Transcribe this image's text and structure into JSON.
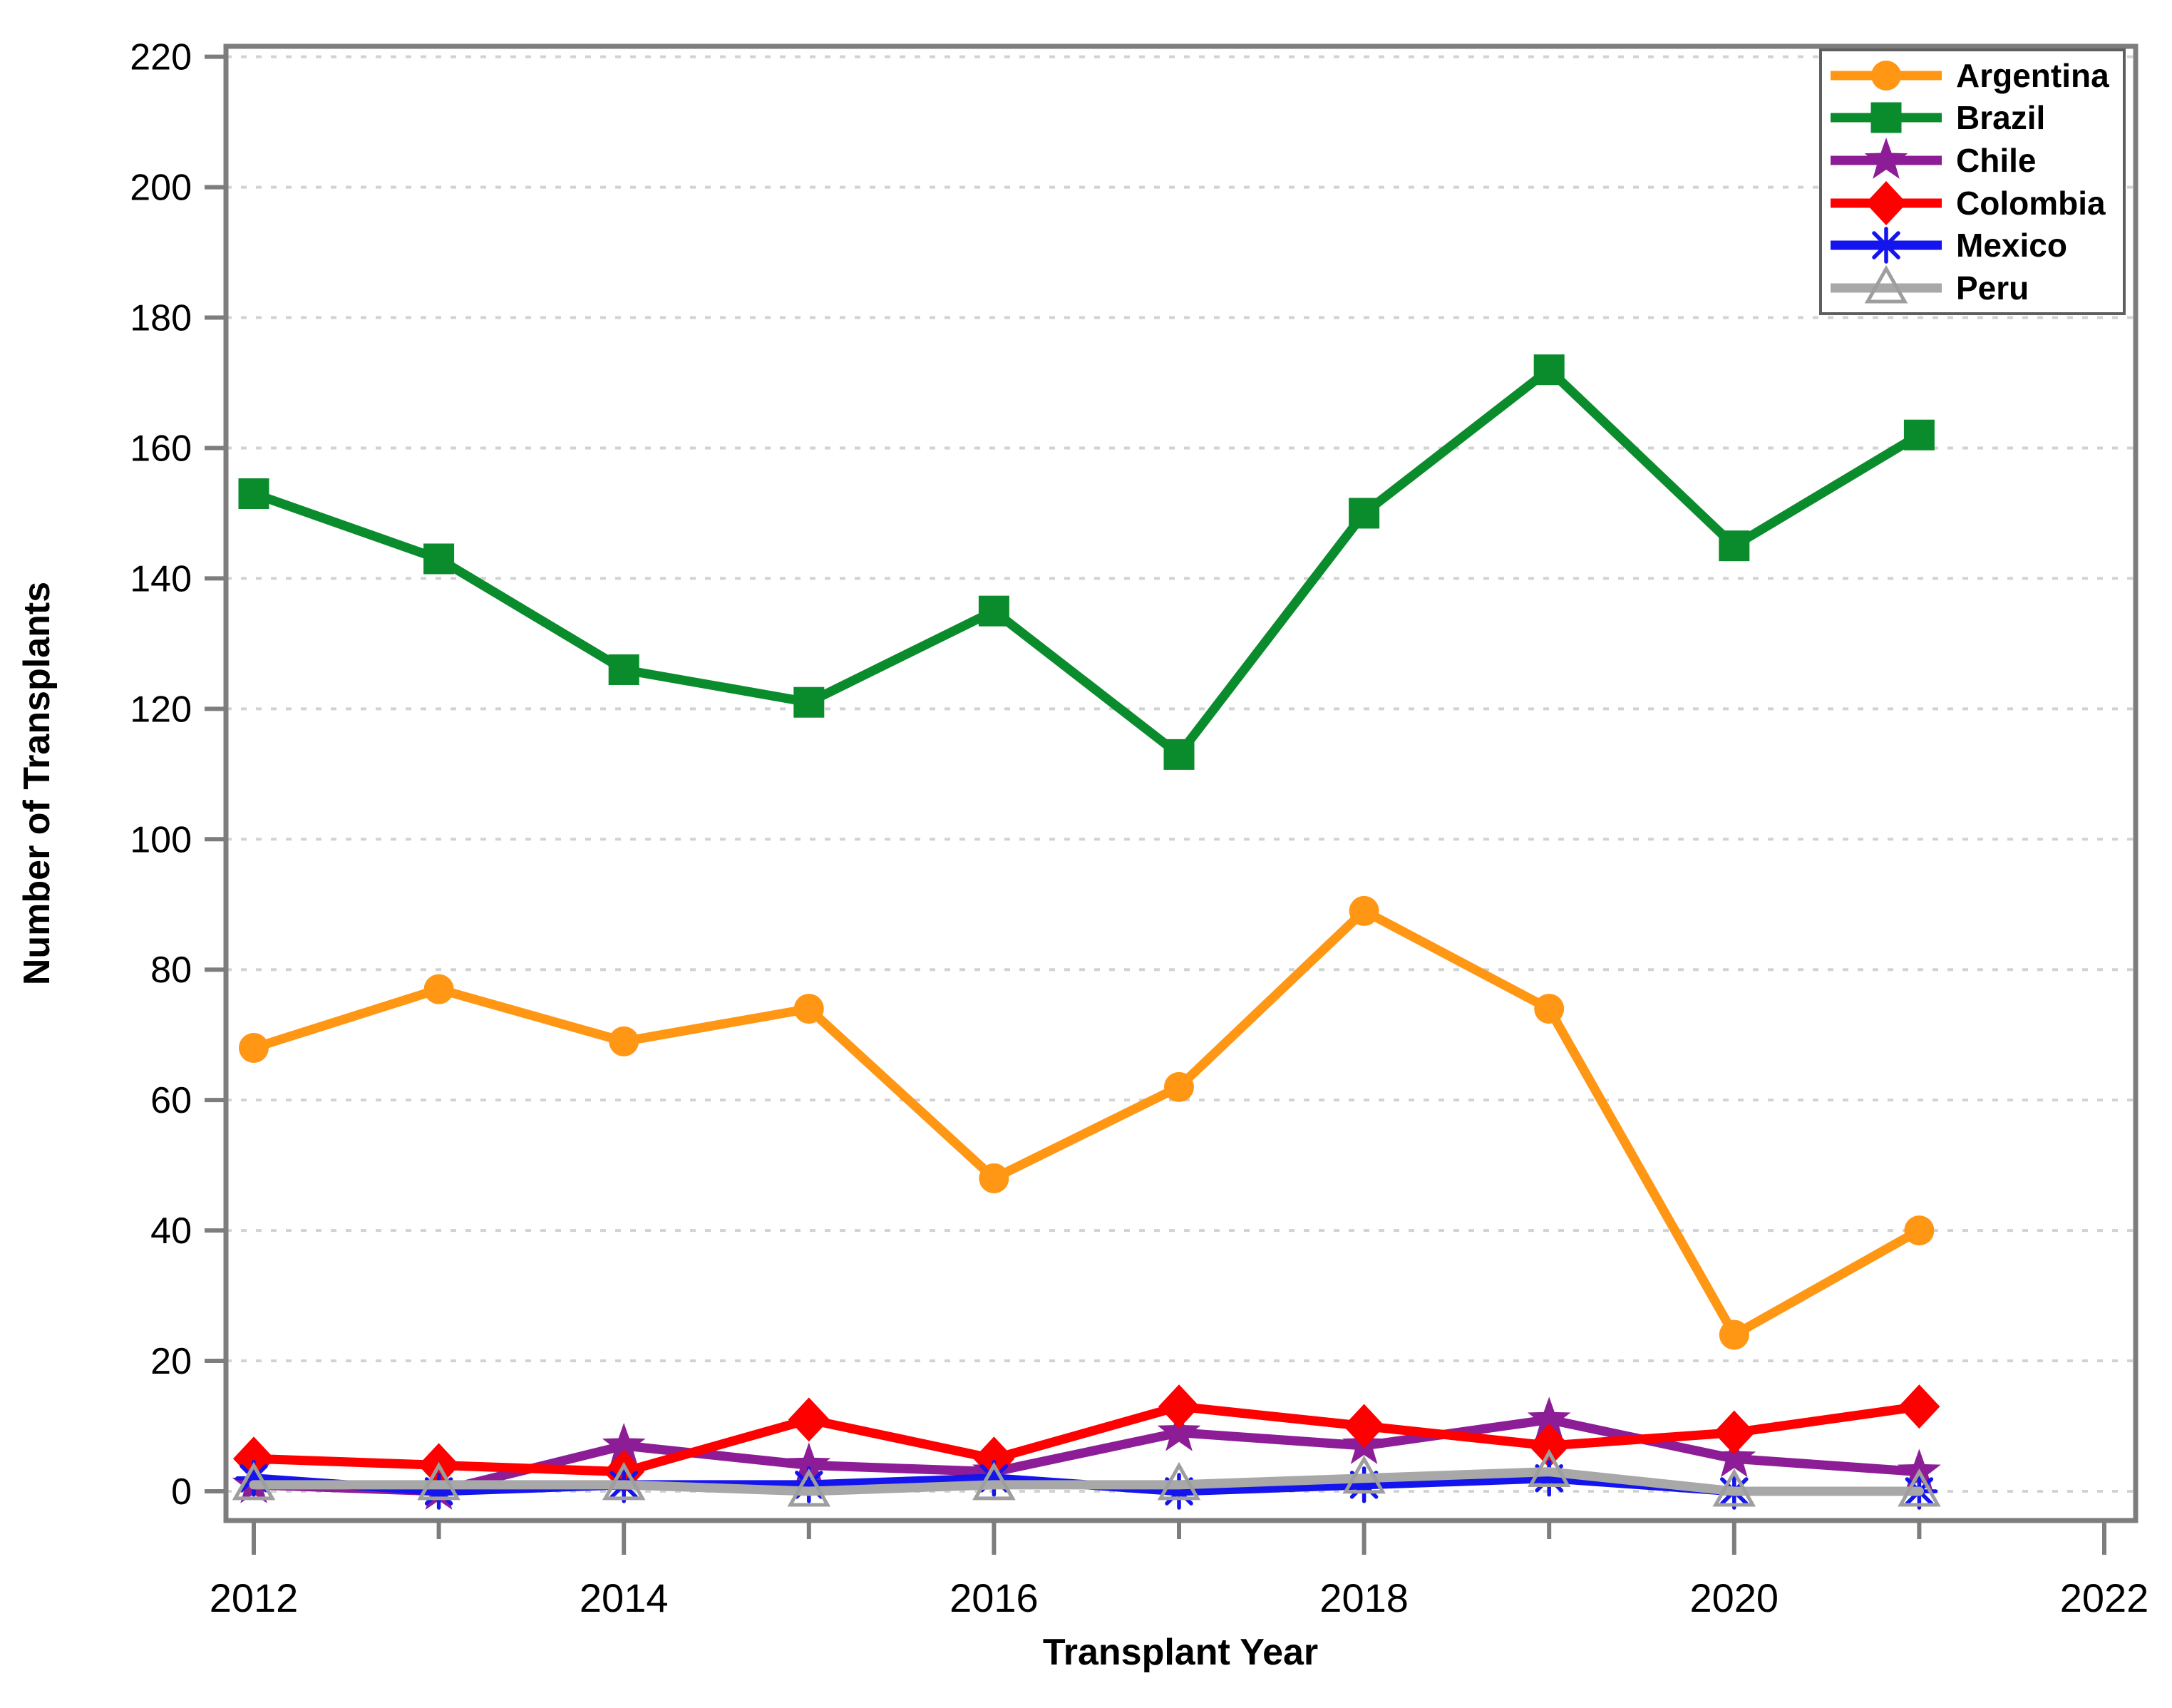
{
  "chart_data": {
    "type": "line",
    "title": "",
    "xlabel": "Transplant Year",
    "ylabel": "Number of Transplants",
    "x": [
      2012,
      2013,
      2014,
      2015,
      2016,
      2017,
      2018,
      2019,
      2020,
      2021
    ],
    "series": [
      {
        "name": "Argentina",
        "color": "#FF9614",
        "marker": "circle-filled",
        "values": [
          68,
          77,
          69,
          74,
          48,
          62,
          89,
          74,
          24,
          40
        ]
      },
      {
        "name": "Brazil",
        "color": "#0A8C2D",
        "marker": "square-filled",
        "values": [
          153,
          143,
          126,
          121,
          135,
          113,
          150,
          172,
          145,
          162
        ]
      },
      {
        "name": "Chile",
        "color": "#8C1D96",
        "marker": "star-filled",
        "values": [
          1,
          0,
          7,
          4,
          3,
          9,
          7,
          11,
          5,
          3
        ]
      },
      {
        "name": "Colombia",
        "color": "#FF0000",
        "marker": "diamond-filled",
        "values": [
          5,
          4,
          3,
          11,
          5,
          13,
          10,
          7,
          9,
          13
        ]
      },
      {
        "name": "Mexico",
        "color": "#1414EE",
        "marker": "asterisk",
        "values": [
          2,
          0,
          1,
          1,
          2,
          0,
          1,
          2,
          0,
          0
        ]
      },
      {
        "name": "Peru",
        "color": "#A8A8A8",
        "marker": "triangle-open",
        "values": [
          1,
          1,
          1,
          0,
          1,
          1,
          2,
          3,
          0,
          0
        ]
      }
    ],
    "yticks": [
      0,
      20,
      40,
      60,
      80,
      100,
      120,
      140,
      160,
      180,
      200,
      220
    ],
    "xticks_major": [
      2012,
      2014,
      2016,
      2018,
      2020,
      2022
    ],
    "xticks_minor": [
      2013,
      2015,
      2017,
      2019,
      2021
    ],
    "ylim": [
      -4.5,
      221.6
    ],
    "xlim": [
      2011.85,
      2022.17
    ],
    "grid": "horizontal-dashed",
    "legend_position": "top-right"
  },
  "style": {
    "background": "#FFFFFF",
    "frame_color": "#7D7D7D",
    "tick_color": "#7D7D7D",
    "gridline_color": "#D2D2D2",
    "text_color": "#000000",
    "triangle_stroke": "#9E9E9E"
  }
}
